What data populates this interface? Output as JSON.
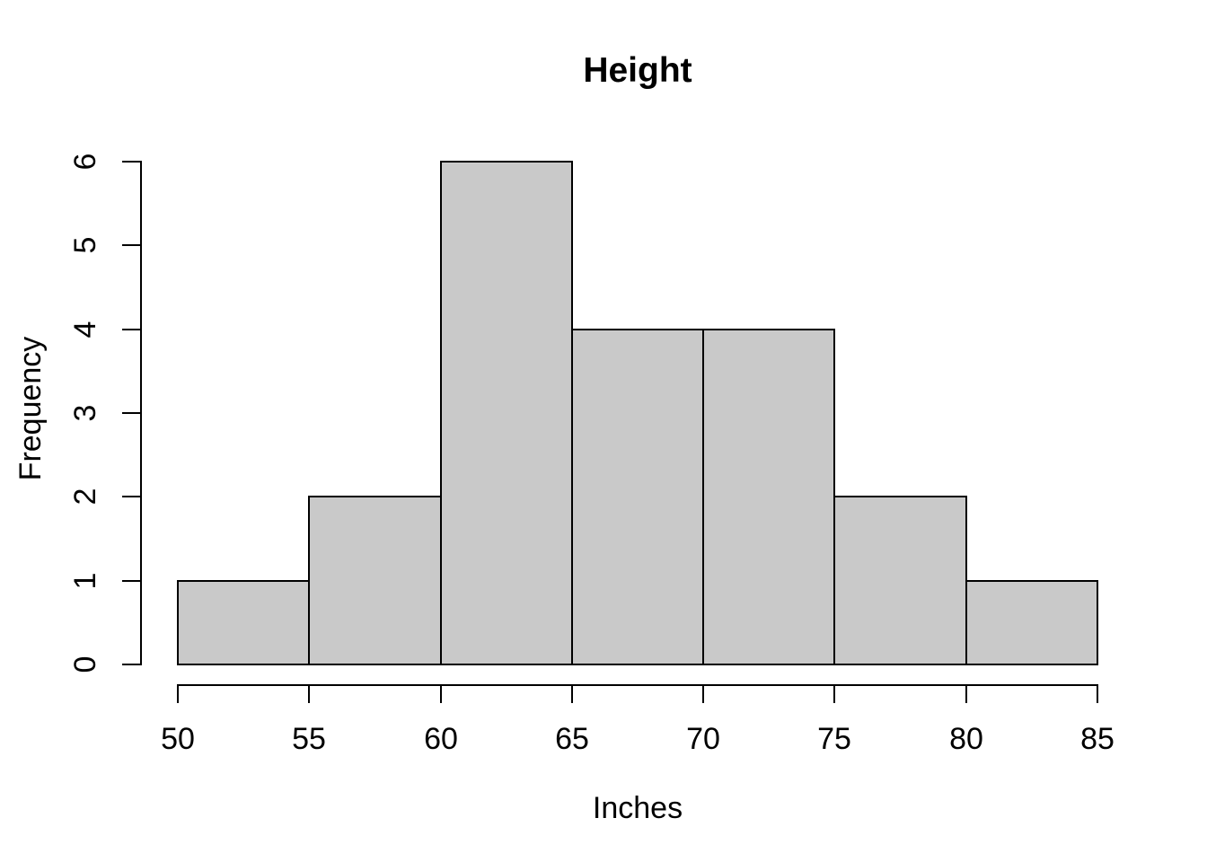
{
  "chart_data": {
    "type": "bar",
    "subtype": "histogram",
    "title": "Height",
    "xlabel": "Inches",
    "ylabel": "Frequency",
    "bin_edges": [
      50,
      55,
      60,
      65,
      70,
      75,
      80,
      85
    ],
    "counts": [
      1,
      2,
      6,
      4,
      4,
      2,
      1
    ],
    "x_ticks": [
      "50",
      "55",
      "60",
      "65",
      "70",
      "75",
      "80",
      "85"
    ],
    "y_ticks": [
      "0",
      "1",
      "2",
      "3",
      "4",
      "5",
      "6"
    ],
    "xlim": [
      50,
      85
    ],
    "ylim": [
      0,
      6
    ],
    "grid": "off",
    "legend": "none",
    "bar_fill": "#C9C9C9",
    "bar_border": "#000000",
    "axis_color": "#000000",
    "background": "#ffffff"
  }
}
